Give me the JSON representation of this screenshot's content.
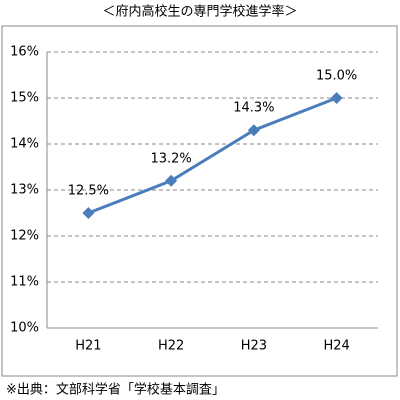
{
  "chart_data": {
    "type": "line",
    "title": "＜府内高校生の専門学校進学率＞",
    "categories": [
      "H21",
      "H22",
      "H23",
      "H24"
    ],
    "values": [
      12.5,
      13.2,
      14.3,
      15.0
    ],
    "value_labels": [
      "12.5%",
      "13.2%",
      "14.3%",
      "15.0%"
    ],
    "color": "#4a7ebb",
    "ylim": [
      10,
      16
    ],
    "yticks": [
      {
        "value": 10,
        "label": "10%"
      },
      {
        "value": 11,
        "label": "11%"
      },
      {
        "value": 12,
        "label": "12%"
      },
      {
        "value": 13,
        "label": "13%"
      },
      {
        "value": 14,
        "label": "14%"
      },
      {
        "value": 15,
        "label": "15%"
      },
      {
        "value": 16,
        "label": "16%"
      }
    ],
    "grid": true,
    "source": "※出典：文部科学省「学校基本調査」"
  }
}
